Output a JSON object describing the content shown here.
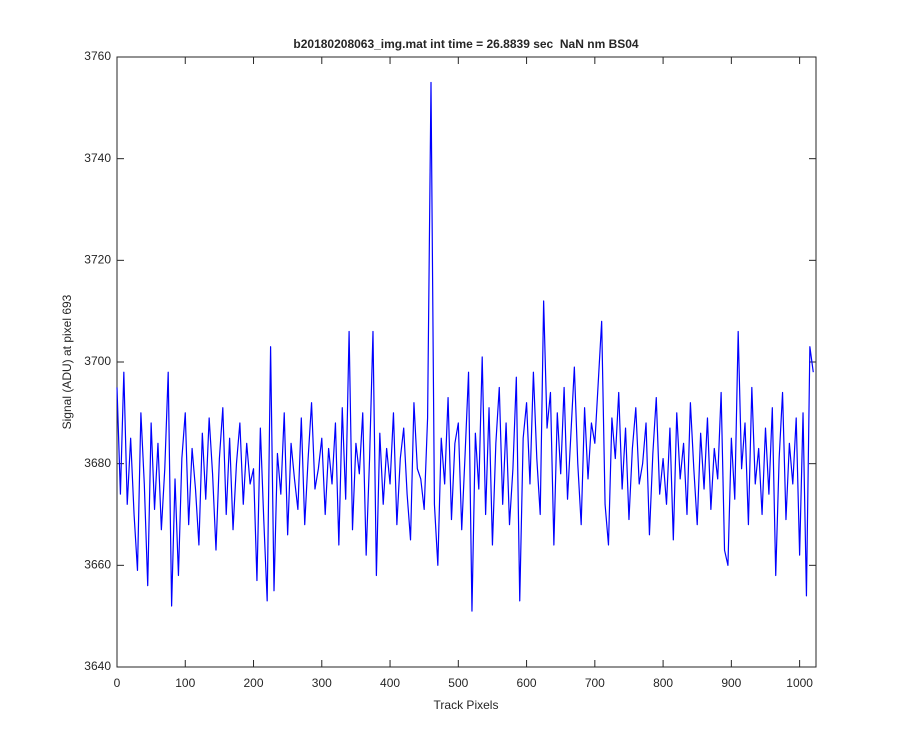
{
  "chart_data": {
    "type": "line",
    "title": "b20180208063_img.mat int time = 26.8839 sec  NaN nm BS04",
    "xlabel": "Track Pixels",
    "ylabel": "Signal (ADU) at pixel 693",
    "xlim": [
      0,
      1024
    ],
    "xticks": [
      0,
      100,
      200,
      300,
      400,
      500,
      600,
      700,
      800,
      900,
      1000
    ],
    "ylim": [
      3640,
      3760
    ],
    "yticks": [
      3640,
      3660,
      3680,
      3700,
      3720,
      3740,
      3760
    ],
    "grid": false,
    "x": [
      0,
      5,
      10,
      15,
      20,
      25,
      30,
      35,
      40,
      45,
      50,
      55,
      60,
      65,
      70,
      75,
      80,
      85,
      90,
      95,
      100,
      105,
      110,
      115,
      120,
      125,
      130,
      135,
      140,
      145,
      150,
      155,
      160,
      165,
      170,
      175,
      180,
      185,
      190,
      195,
      200,
      205,
      210,
      215,
      220,
      225,
      230,
      235,
      240,
      245,
      250,
      255,
      260,
      265,
      270,
      275,
      280,
      285,
      290,
      295,
      300,
      305,
      310,
      315,
      320,
      325,
      330,
      335,
      340,
      345,
      350,
      355,
      360,
      365,
      370,
      375,
      380,
      385,
      390,
      395,
      400,
      405,
      410,
      415,
      420,
      425,
      430,
      435,
      440,
      445,
      450,
      455,
      460,
      465,
      470,
      475,
      480,
      485,
      490,
      495,
      500,
      505,
      510,
      515,
      520,
      525,
      530,
      535,
      540,
      545,
      550,
      555,
      560,
      565,
      570,
      575,
      580,
      585,
      590,
      595,
      600,
      605,
      610,
      615,
      620,
      625,
      630,
      635,
      640,
      645,
      650,
      655,
      660,
      665,
      670,
      675,
      680,
      685,
      690,
      695,
      700,
      705,
      710,
      715,
      720,
      725,
      730,
      735,
      740,
      745,
      750,
      755,
      760,
      765,
      770,
      775,
      780,
      785,
      790,
      795,
      800,
      805,
      810,
      815,
      820,
      825,
      830,
      835,
      840,
      845,
      850,
      855,
      860,
      865,
      870,
      875,
      880,
      885,
      890,
      895,
      900,
      905,
      910,
      915,
      920,
      925,
      930,
      935,
      940,
      945,
      950,
      955,
      960,
      965,
      970,
      975,
      980,
      985,
      990,
      995,
      1000,
      1005,
      1010,
      1015,
      1020
    ],
    "series": [
      {
        "color": "#0000ff",
        "values": [
          3695,
          3674,
          3698,
          3672,
          3685,
          3670,
          3659,
          3690,
          3676,
          3656,
          3688,
          3671,
          3684,
          3667,
          3679,
          3698,
          3652,
          3677,
          3658,
          3681,
          3690,
          3668,
          3683,
          3675,
          3664,
          3686,
          3673,
          3689,
          3678,
          3663,
          3681,
          3691,
          3670,
          3685,
          3667,
          3680,
          3688,
          3672,
          3684,
          3676,
          3679,
          3657,
          3687,
          3669,
          3653,
          3703,
          3655,
          3682,
          3674,
          3690,
          3666,
          3684,
          3677,
          3671,
          3689,
          3668,
          3681,
          3692,
          3675,
          3679,
          3685,
          3670,
          3683,
          3676,
          3688,
          3664,
          3691,
          3673,
          3706,
          3667,
          3684,
          3678,
          3690,
          3662,
          3681,
          3706,
          3658,
          3686,
          3672,
          3683,
          3676,
          3690,
          3668,
          3681,
          3687,
          3674,
          3665,
          3692,
          3679,
          3677,
          3671,
          3689,
          3755,
          3672,
          3660,
          3685,
          3676,
          3693,
          3669,
          3684,
          3688,
          3667,
          3682,
          3698,
          3651,
          3686,
          3675,
          3701,
          3670,
          3691,
          3664,
          3684,
          3695,
          3672,
          3688,
          3668,
          3679,
          3697,
          3653,
          3685,
          3692,
          3676,
          3698,
          3681,
          3670,
          3712,
          3687,
          3694,
          3664,
          3690,
          3678,
          3695,
          3673,
          3686,
          3699,
          3680,
          3668,
          3691,
          3677,
          3688,
          3684,
          3696,
          3708,
          3672,
          3664,
          3689,
          3681,
          3694,
          3675,
          3687,
          3669,
          3683,
          3691,
          3676,
          3680,
          3688,
          3666,
          3682,
          3693,
          3674,
          3681,
          3672,
          3687,
          3665,
          3690,
          3677,
          3684,
          3670,
          3692,
          3679,
          3668,
          3686,
          3675,
          3689,
          3671,
          3683,
          3677,
          3694,
          3663,
          3660,
          3685,
          3673,
          3706,
          3679,
          3688,
          3668,
          3695,
          3676,
          3683,
          3670,
          3687,
          3674,
          3691,
          3658,
          3681,
          3694,
          3669,
          3684,
          3676,
          3689,
          3662,
          3690,
          3654,
          3703,
          3698
        ]
      }
    ]
  }
}
